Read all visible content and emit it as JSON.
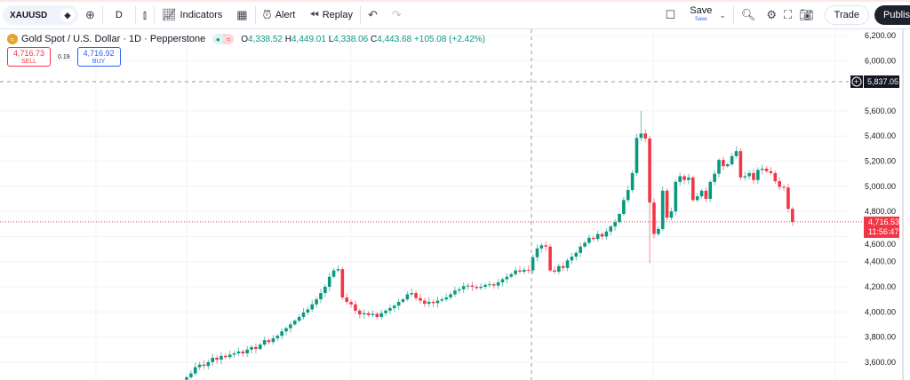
{
  "toolbar": {
    "symbol": "XAUUSD",
    "interval": "D",
    "indicators": "Indicators",
    "alert": "Alert",
    "replay": "Replay",
    "save": "Save",
    "save_sub": "Save",
    "trade": "Trade",
    "publish": "Publish"
  },
  "legend": {
    "title": "Gold Spot / U.S. Dollar · 1D · Pepperstone",
    "o_label": "O",
    "o": "4,338.52",
    "h_label": "H",
    "h": "4,449.01",
    "l_label": "L",
    "l": "4,338.06",
    "c_label": "C",
    "c": "4,443.68",
    "change": "+105.08 (+2.42%)"
  },
  "trade_box": {
    "sell_price": "4,716.73",
    "sell_label": "SELL",
    "spread": "0.19",
    "buy_price": "4,716.92",
    "buy_label": "BUY"
  },
  "crosshair": {
    "price": "5,837.05"
  },
  "current": {
    "price": "4,716.53",
    "countdown": "11:56:47"
  },
  "colors": {
    "up": "#089981",
    "down": "#f23645",
    "accent": "#2962ff"
  },
  "chart_data": {
    "type": "candlestick",
    "ylim": [
      3450,
      6300
    ],
    "yticks": [
      6200,
      6000,
      5600,
      5400,
      5200,
      5000,
      4800,
      4600,
      4400,
      4200,
      4000,
      3800,
      3600
    ],
    "ytick_labels": [
      "6,200.00",
      "6,000.00",
      "5,600.00",
      "5,400.00",
      "5,200.00",
      "5,000.00",
      "4,800.00",
      "4,600.00",
      "4,400.00",
      "4,200.00",
      "4,000.00",
      "3,800.00",
      "3,600.00"
    ],
    "close": [
      3480,
      3510,
      3560,
      3580,
      3570,
      3600,
      3635,
      3620,
      3650,
      3640,
      3660,
      3670,
      3685,
      3670,
      3700,
      3720,
      3705,
      3740,
      3775,
      3760,
      3790,
      3810,
      3845,
      3870,
      3900,
      3930,
      3960,
      3995,
      4020,
      4060,
      4100,
      4150,
      4200,
      4280,
      4330,
      4340,
      4115,
      4080,
      4060,
      4010,
      3980,
      3990,
      3975,
      3985,
      3960,
      3990,
      4010,
      4030,
      4050,
      4080,
      4100,
      4140,
      4150,
      4110,
      4090,
      4065,
      4080,
      4070,
      4090,
      4100,
      4115,
      4140,
      4170,
      4180,
      4205,
      4210,
      4200,
      4190,
      4200,
      4215,
      4220,
      4210,
      4235,
      4260,
      4280,
      4300,
      4330,
      4320,
      4335,
      4330,
      4435,
      4505,
      4530,
      4520,
      4330,
      4320,
      4365,
      4350,
      4410,
      4440,
      4470,
      4520,
      4550,
      4590,
      4580,
      4620,
      4600,
      4640,
      4680,
      4715,
      4780,
      4890,
      4970,
      5105,
      5385,
      5420,
      5380,
      4870,
      4620,
      4660,
      4965,
      4750,
      4800,
      5035,
      5080,
      5050,
      5070,
      4890,
      4920,
      4965,
      4900,
      5035,
      5100,
      5210,
      5160,
      5175,
      5240,
      5280,
      5070,
      5080,
      5105,
      5050,
      5130,
      5140,
      5120,
      5105,
      5040,
      4995,
      4990,
      4820,
      4716.53
    ]
  }
}
